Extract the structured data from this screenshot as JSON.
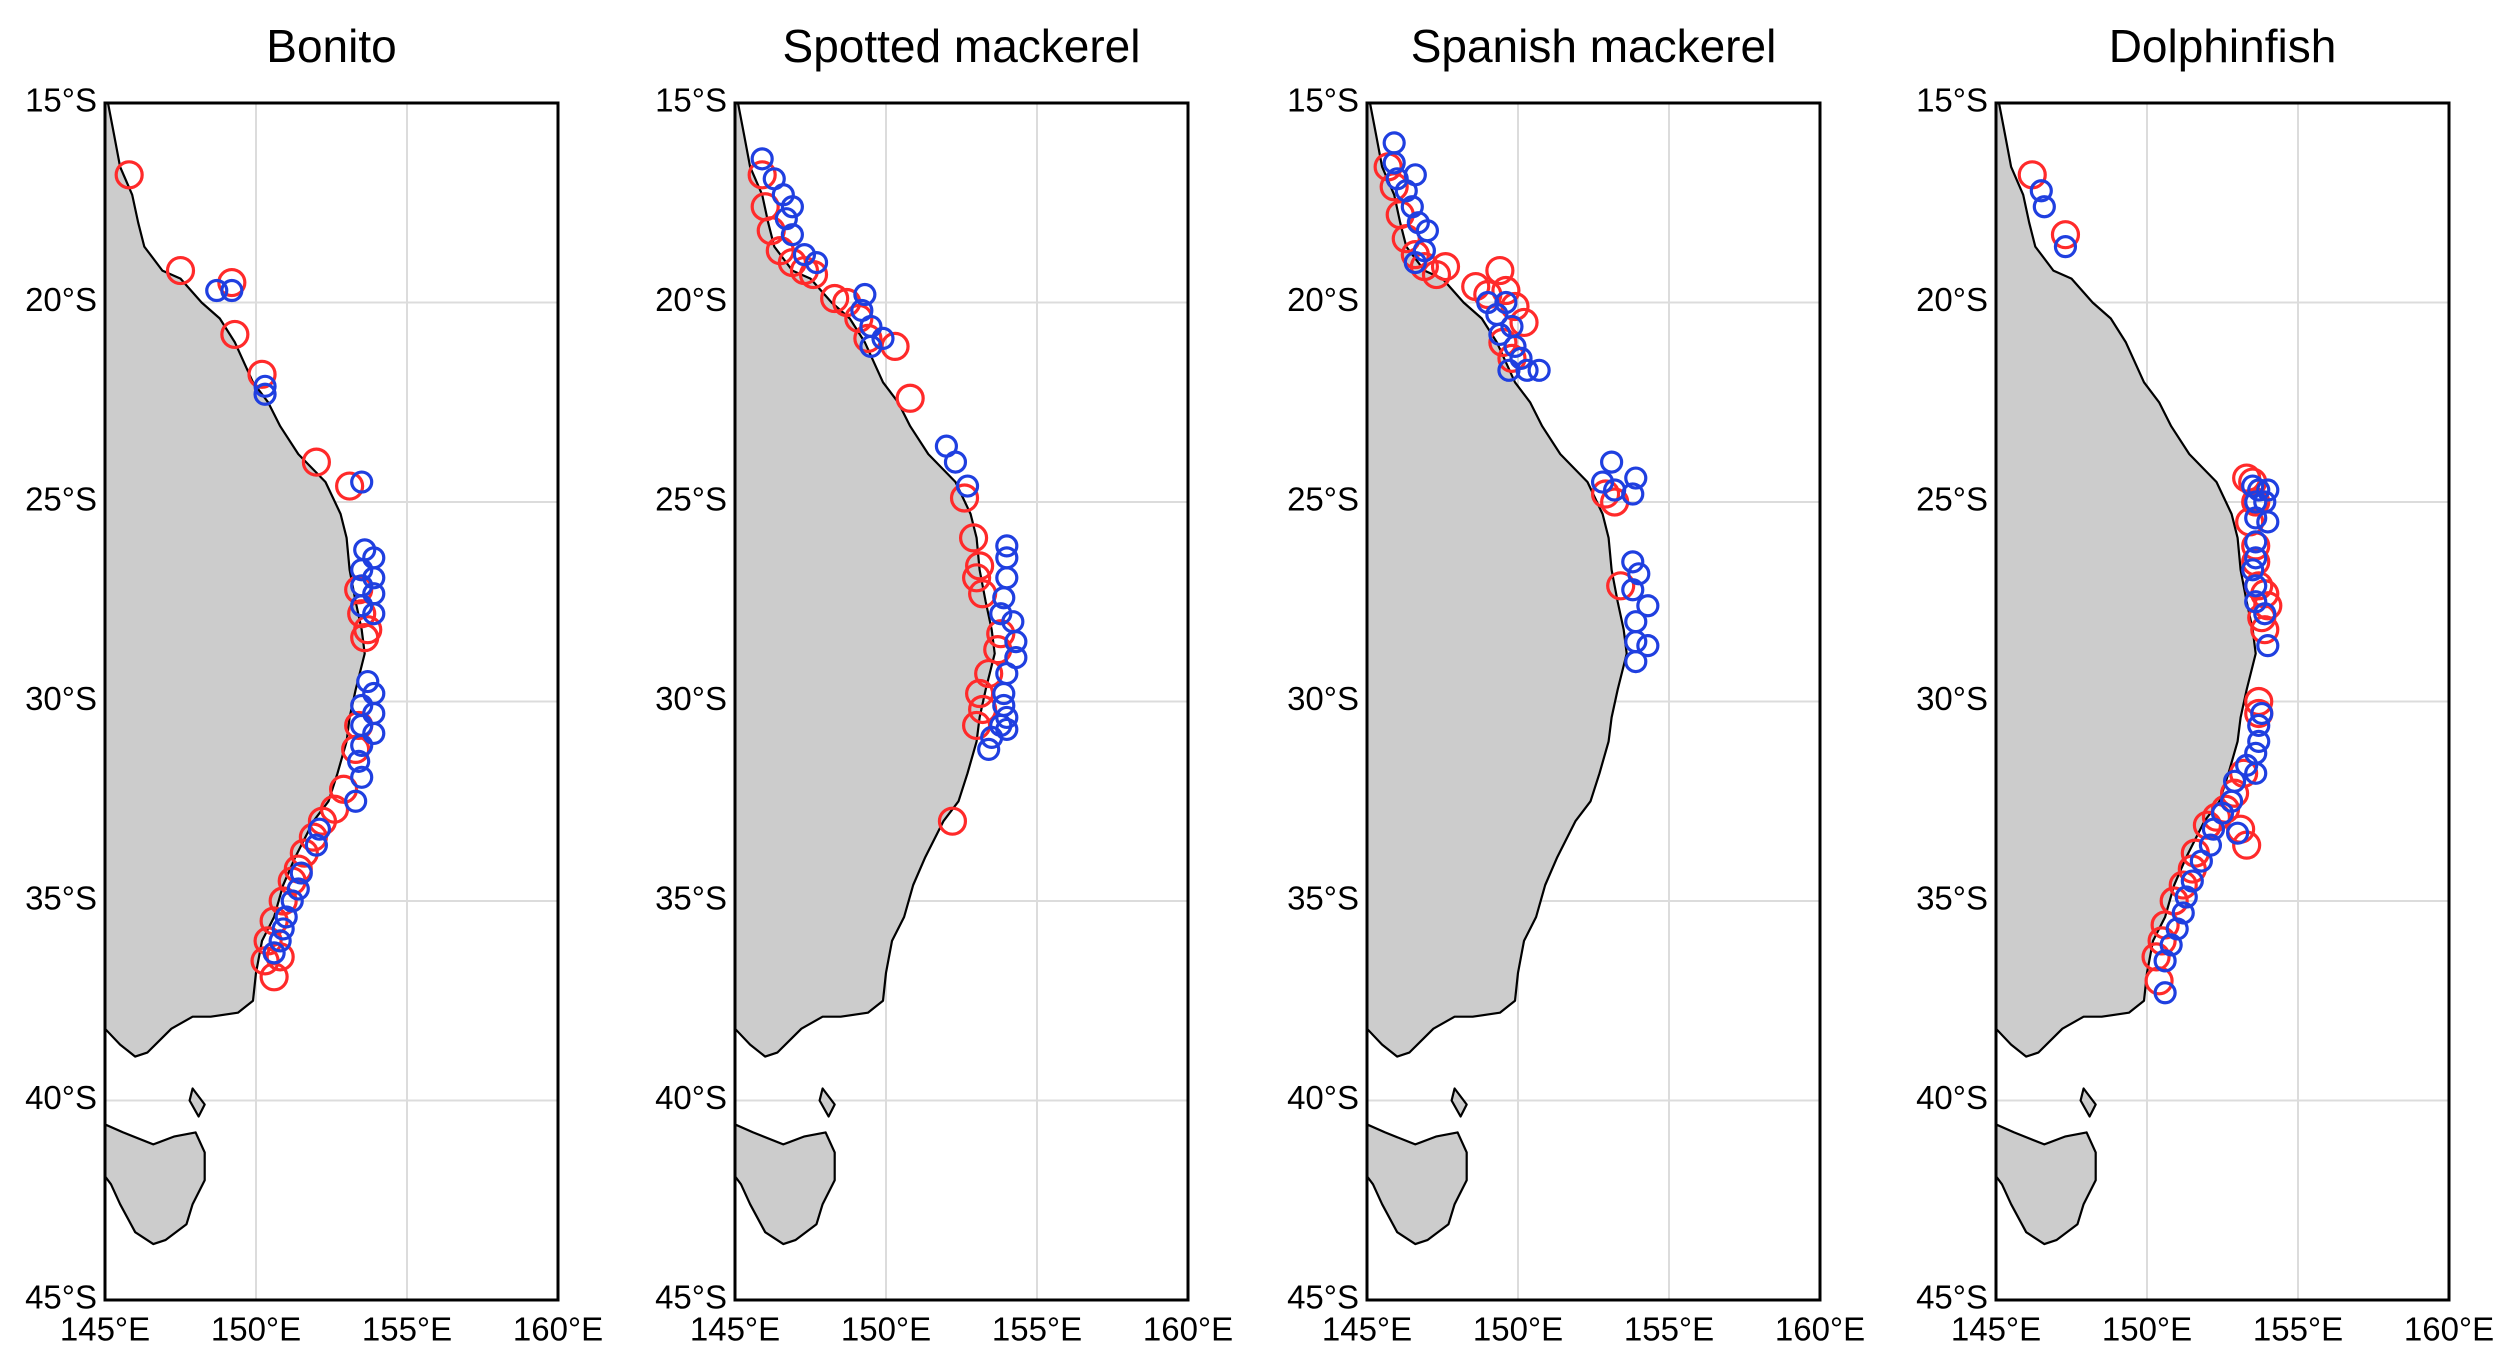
{
  "colors": {
    "red_marker": "#ff2a2a",
    "blue_marker": "#1f3fe0",
    "land": "#cccccc",
    "grid": "#dcdcdc"
  },
  "axes": {
    "lon_range": [
      145,
      160
    ],
    "lat_range": [
      -45,
      -15
    ],
    "x_ticks": [
      145,
      150,
      155,
      160
    ],
    "x_tick_labels": [
      "145°E",
      "150°E",
      "155°E",
      "160°E"
    ],
    "y_ticks": [
      -15,
      -20,
      -25,
      -30,
      -35,
      -40,
      -45
    ],
    "y_tick_labels": [
      "15°S",
      "20°S",
      "25°S",
      "30°S",
      "35°S",
      "40°S",
      "45°S"
    ],
    "grid": true
  },
  "chart_data": [
    {
      "type": "scatter",
      "title": "Bonito",
      "series": [
        {
          "color": "red",
          "points": [
            [
              145.8,
              -16.8
            ],
            [
              147.5,
              -19.2
            ],
            [
              149.2,
              -19.5
            ],
            [
              149.3,
              -20.8
            ],
            [
              150.2,
              -21.8
            ],
            [
              152.0,
              -24.0
            ],
            [
              153.1,
              -24.6
            ],
            [
              153.4,
              -27.2
            ],
            [
              153.5,
              -27.8
            ],
            [
              153.7,
              -28.2
            ],
            [
              153.6,
              -28.4
            ],
            [
              153.4,
              -30.6
            ],
            [
              153.3,
              -31.2
            ],
            [
              152.9,
              -32.2
            ],
            [
              152.6,
              -32.7
            ],
            [
              152.2,
              -33.0
            ],
            [
              151.9,
              -33.4
            ],
            [
              151.6,
              -33.8
            ],
            [
              151.4,
              -34.2
            ],
            [
              151.2,
              -34.5
            ],
            [
              150.9,
              -35.0
            ],
            [
              150.6,
              -35.5
            ],
            [
              150.4,
              -36.0
            ],
            [
              150.3,
              -36.5
            ],
            [
              150.8,
              -36.4
            ],
            [
              150.6,
              -36.9
            ]
          ]
        },
        {
          "color": "blue",
          "points": [
            [
              148.7,
              -19.7
            ],
            [
              149.2,
              -19.7
            ],
            [
              150.3,
              -22.1
            ],
            [
              150.3,
              -22.3
            ],
            [
              153.5,
              -24.5
            ],
            [
              153.6,
              -26.2
            ],
            [
              153.9,
              -26.4
            ],
            [
              153.5,
              -26.7
            ],
            [
              153.9,
              -26.9
            ],
            [
              153.5,
              -27.1
            ],
            [
              153.9,
              -27.3
            ],
            [
              153.5,
              -27.6
            ],
            [
              153.9,
              -27.8
            ],
            [
              153.7,
              -29.5
            ],
            [
              153.9,
              -29.8
            ],
            [
              153.5,
              -30.1
            ],
            [
              153.9,
              -30.3
            ],
            [
              153.5,
              -30.6
            ],
            [
              153.9,
              -30.8
            ],
            [
              153.5,
              -31.1
            ],
            [
              153.4,
              -31.5
            ],
            [
              153.5,
              -31.9
            ],
            [
              153.3,
              -32.5
            ],
            [
              152.1,
              -33.2
            ],
            [
              152.0,
              -33.6
            ],
            [
              151.5,
              -34.3
            ],
            [
              151.4,
              -34.7
            ],
            [
              151.2,
              -35.0
            ],
            [
              151.0,
              -35.4
            ],
            [
              150.9,
              -35.7
            ],
            [
              150.8,
              -36.0
            ],
            [
              150.6,
              -36.3
            ]
          ]
        }
      ]
    },
    {
      "type": "scatter",
      "title": "Spotted mackerel",
      "series": [
        {
          "color": "red",
          "points": [
            [
              145.9,
              -16.8
            ],
            [
              146.0,
              -17.6
            ],
            [
              146.2,
              -18.2
            ],
            [
              146.5,
              -18.7
            ],
            [
              146.9,
              -19.0
            ],
            [
              147.3,
              -19.2
            ],
            [
              147.6,
              -19.3
            ],
            [
              148.3,
              -19.9
            ],
            [
              148.7,
              -20.0
            ],
            [
              149.1,
              -20.4
            ],
            [
              149.4,
              -20.9
            ],
            [
              150.3,
              -21.1
            ],
            [
              150.8,
              -22.4
            ],
            [
              152.6,
              -24.9
            ],
            [
              152.9,
              -25.9
            ],
            [
              153.1,
              -26.6
            ],
            [
              153.0,
              -26.9
            ],
            [
              153.2,
              -27.3
            ],
            [
              153.8,
              -28.3
            ],
            [
              153.7,
              -28.7
            ],
            [
              153.4,
              -29.3
            ],
            [
              153.1,
              -29.8
            ],
            [
              153.2,
              -30.2
            ],
            [
              153.0,
              -30.6
            ],
            [
              152.2,
              -33.0
            ]
          ]
        },
        {
          "color": "blue",
          "points": [
            [
              145.9,
              -16.4
            ],
            [
              146.3,
              -16.9
            ],
            [
              146.6,
              -17.3
            ],
            [
              146.9,
              -17.6
            ],
            [
              146.7,
              -17.9
            ],
            [
              146.9,
              -18.3
            ],
            [
              147.3,
              -18.8
            ],
            [
              147.7,
              -19.0
            ],
            [
              149.3,
              -19.8
            ],
            [
              149.2,
              -20.2
            ],
            [
              149.5,
              -20.6
            ],
            [
              149.9,
              -20.9
            ],
            [
              149.5,
              -21.1
            ],
            [
              152.0,
              -23.6
            ],
            [
              152.3,
              -24.0
            ],
            [
              152.7,
              -24.6
            ],
            [
              154.0,
              -26.1
            ],
            [
              154.0,
              -26.4
            ],
            [
              154.0,
              -26.9
            ],
            [
              153.9,
              -27.4
            ],
            [
              153.8,
              -27.8
            ],
            [
              154.2,
              -28.0
            ],
            [
              154.3,
              -28.5
            ],
            [
              154.3,
              -28.9
            ],
            [
              154.0,
              -29.3
            ],
            [
              153.9,
              -29.8
            ],
            [
              153.9,
              -30.1
            ],
            [
              153.8,
              -30.6
            ],
            [
              153.5,
              -30.9
            ],
            [
              153.4,
              -31.2
            ],
            [
              154.0,
              -30.7
            ],
            [
              154.0,
              -30.4
            ]
          ]
        }
      ]
    },
    {
      "type": "scatter",
      "title": "Spanish mackerel",
      "series": [
        {
          "color": "red",
          "points": [
            [
              145.7,
              -16.6
            ],
            [
              145.9,
              -17.1
            ],
            [
              146.1,
              -17.8
            ],
            [
              146.3,
              -18.4
            ],
            [
              146.6,
              -18.8
            ],
            [
              146.9,
              -19.1
            ],
            [
              147.3,
              -19.3
            ],
            [
              147.6,
              -19.1
            ],
            [
              148.6,
              -19.6
            ],
            [
              149.0,
              -19.8
            ],
            [
              149.4,
              -19.2
            ],
            [
              149.6,
              -19.7
            ],
            [
              149.9,
              -20.1
            ],
            [
              150.2,
              -20.5
            ],
            [
              149.5,
              -21.0
            ],
            [
              149.8,
              -21.4
            ],
            [
              152.9,
              -24.8
            ],
            [
              153.2,
              -25.0
            ],
            [
              153.4,
              -27.1
            ]
          ]
        },
        {
          "color": "blue",
          "points": [
            [
              145.9,
              -16.0
            ],
            [
              145.9,
              -16.5
            ],
            [
              146.0,
              -16.9
            ],
            [
              146.3,
              -17.2
            ],
            [
              146.6,
              -16.8
            ],
            [
              146.5,
              -17.6
            ],
            [
              146.7,
              -18.0
            ],
            [
              147.0,
              -18.2
            ],
            [
              146.9,
              -18.7
            ],
            [
              146.6,
              -19.0
            ],
            [
              149.0,
              -20.0
            ],
            [
              149.3,
              -20.3
            ],
            [
              149.6,
              -20.0
            ],
            [
              149.8,
              -20.6
            ],
            [
              149.4,
              -20.8
            ],
            [
              149.9,
              -21.1
            ],
            [
              150.1,
              -21.4
            ],
            [
              149.7,
              -21.7
            ],
            [
              150.3,
              -21.7
            ],
            [
              150.7,
              -21.7
            ],
            [
              153.1,
              -24.0
            ],
            [
              153.2,
              -24.7
            ],
            [
              152.8,
              -24.5
            ],
            [
              153.9,
              -24.4
            ],
            [
              153.8,
              -24.8
            ],
            [
              153.8,
              -26.5
            ],
            [
              154.0,
              -26.8
            ],
            [
              153.8,
              -27.2
            ],
            [
              154.3,
              -27.6
            ],
            [
              153.9,
              -28.0
            ],
            [
              153.9,
              -28.5
            ],
            [
              154.3,
              -28.6
            ],
            [
              153.9,
              -29.0
            ]
          ]
        }
      ]
    },
    {
      "type": "scatter",
      "title": "Dolphinfish",
      "series": [
        {
          "color": "red",
          "points": [
            [
              146.2,
              -16.8
            ],
            [
              147.3,
              -18.3
            ],
            [
              153.3,
              -24.4
            ],
            [
              153.5,
              -24.5
            ],
            [
              153.6,
              -25.0
            ],
            [
              153.4,
              -25.5
            ],
            [
              153.6,
              -26.1
            ],
            [
              153.6,
              -26.5
            ],
            [
              153.7,
              -27.1
            ],
            [
              153.9,
              -27.3
            ],
            [
              154.0,
              -27.6
            ],
            [
              153.8,
              -27.9
            ],
            [
              153.9,
              -28.2
            ],
            [
              153.7,
              -30.0
            ],
            [
              153.7,
              -30.3
            ],
            [
              153.2,
              -31.8
            ],
            [
              152.9,
              -32.3
            ],
            [
              152.6,
              -32.7
            ],
            [
              152.3,
              -32.9
            ],
            [
              152.0,
              -33.1
            ],
            [
              153.1,
              -33.2
            ],
            [
              153.3,
              -33.6
            ],
            [
              151.6,
              -33.8
            ],
            [
              151.5,
              -34.2
            ],
            [
              151.2,
              -34.6
            ],
            [
              150.9,
              -35.0
            ],
            [
              150.6,
              -35.6
            ],
            [
              150.5,
              -36.0
            ],
            [
              150.3,
              -36.4
            ],
            [
              150.4,
              -37.0
            ]
          ]
        },
        {
          "color": "blue",
          "points": [
            [
              146.5,
              -17.2
            ],
            [
              146.6,
              -17.6
            ],
            [
              147.3,
              -18.6
            ],
            [
              153.5,
              -24.6
            ],
            [
              153.7,
              -24.7
            ],
            [
              154.0,
              -24.7
            ],
            [
              153.6,
              -25.0
            ],
            [
              153.9,
              -25.0
            ],
            [
              153.6,
              -25.4
            ],
            [
              154.0,
              -25.5
            ],
            [
              153.6,
              -26.0
            ],
            [
              153.6,
              -26.4
            ],
            [
              153.5,
              -26.7
            ],
            [
              153.6,
              -27.1
            ],
            [
              153.6,
              -27.5
            ],
            [
              153.9,
              -27.8
            ],
            [
              154.0,
              -28.6
            ],
            [
              153.8,
              -30.3
            ],
            [
              153.7,
              -30.6
            ],
            [
              153.7,
              -31.0
            ],
            [
              153.6,
              -31.3
            ],
            [
              153.3,
              -31.6
            ],
            [
              153.6,
              -31.8
            ],
            [
              152.9,
              -32.0
            ],
            [
              152.8,
              -32.5
            ],
            [
              152.5,
              -32.8
            ],
            [
              152.2,
              -33.2
            ],
            [
              153.0,
              -33.3
            ],
            [
              152.1,
              -33.6
            ],
            [
              151.8,
              -34.0
            ],
            [
              151.5,
              -34.5
            ],
            [
              151.3,
              -34.9
            ],
            [
              151.2,
              -35.3
            ],
            [
              151.0,
              -35.7
            ],
            [
              150.8,
              -36.1
            ],
            [
              150.6,
              -36.5
            ],
            [
              150.6,
              -37.3
            ]
          ]
        }
      ]
    }
  ]
}
